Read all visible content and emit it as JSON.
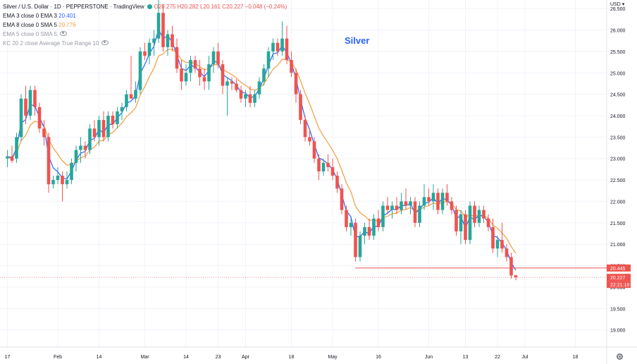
{
  "header": {
    "symbol": "Silver / U.S. Dollar · 1D · PEPPERSTONE · TradingView",
    "ohlc": "O20.275 H20.282 L20.161 C20.227 −0.048 (−0.24%)",
    "indicators": [
      {
        "label": "EMA 3 close 0 EMA 3",
        "value": "20.401",
        "color": "#2962ff"
      },
      {
        "label": "EMA 8 close 0 SMA 5",
        "value": "20.776",
        "color": "#f39c3c"
      },
      {
        "label": "EMA 5 close 0 SMA 5",
        "value": "",
        "color": "#9598a1"
      },
      {
        "label": "KC 20 2 close Average True Range 10",
        "value": "",
        "color": "#9598a1"
      }
    ]
  },
  "watermark": "Silver",
  "price_axis": {
    "currency": "USD",
    "ticks": [
      "26.500",
      "26.000",
      "25.500",
      "25.000",
      "24.500",
      "24.000",
      "23.500",
      "23.000",
      "22.500",
      "22.000",
      "21.500",
      "21.000",
      "20.500",
      "20.000",
      "19.500",
      "19.000"
    ],
    "tags": [
      {
        "text": "20.445",
        "value": 20.445,
        "bg": "#ef5350"
      },
      {
        "text": "20.227",
        "value": 20.227,
        "bg": "#ef5350"
      },
      {
        "text": "22:21:18",
        "value": 20.1,
        "bg": "#ef5350"
      }
    ]
  },
  "time_axis": {
    "ticks": [
      {
        "label": "17",
        "idx": 0
      },
      {
        "label": "Feb",
        "idx": 11
      },
      {
        "label": "14",
        "idx": 20
      },
      {
        "label": "Mar",
        "idx": 30
      },
      {
        "label": "14",
        "idx": 39
      },
      {
        "label": "23",
        "idx": 46
      },
      {
        "label": "Apr",
        "idx": 52
      },
      {
        "label": "18",
        "idx": 62
      },
      {
        "label": "May",
        "idx": 71
      },
      {
        "label": "16",
        "idx": 81
      },
      {
        "label": "Jun",
        "idx": 92
      },
      {
        "label": "13",
        "idx": 100
      },
      {
        "label": "22",
        "idx": 107
      },
      {
        "label": "Jul",
        "idx": 113
      },
      {
        "label": "18",
        "idx": 124
      }
    ]
  },
  "chart_data": {
    "type": "candlestick",
    "title": "Silver / U.S. Dollar · 1D · PEPPERSTONE",
    "ylim": [
      18.6,
      26.7
    ],
    "support_level": 20.445,
    "last_price": 20.227,
    "colors": {
      "up": "#26a69a",
      "down": "#ef5350",
      "ema3": "#2962ff",
      "ema8": "#f39c3c"
    },
    "candles": [
      {
        "o": 23.0,
        "h": 23.2,
        "l": 22.8,
        "c": 23.05
      },
      {
        "o": 23.05,
        "h": 23.3,
        "l": 22.9,
        "c": 22.95
      },
      {
        "o": 23.0,
        "h": 23.6,
        "l": 22.9,
        "c": 23.5
      },
      {
        "o": 23.5,
        "h": 24.5,
        "l": 23.4,
        "c": 24.4
      },
      {
        "o": 24.4,
        "h": 24.7,
        "l": 23.8,
        "c": 24.0
      },
      {
        "o": 24.0,
        "h": 24.7,
        "l": 23.9,
        "c": 24.6
      },
      {
        "o": 24.6,
        "h": 24.7,
        "l": 24.0,
        "c": 24.2
      },
      {
        "o": 24.2,
        "h": 24.3,
        "l": 23.6,
        "c": 23.7
      },
      {
        "o": 23.7,
        "h": 23.9,
        "l": 23.3,
        "c": 23.5
      },
      {
        "o": 23.5,
        "h": 23.6,
        "l": 22.2,
        "c": 22.4
      },
      {
        "o": 22.4,
        "h": 22.6,
        "l": 22.3,
        "c": 22.5
      },
      {
        "o": 22.5,
        "h": 22.8,
        "l": 22.4,
        "c": 22.6
      },
      {
        "o": 22.6,
        "h": 22.7,
        "l": 22.0,
        "c": 22.4
      },
      {
        "o": 22.4,
        "h": 22.7,
        "l": 22.3,
        "c": 22.5
      },
      {
        "o": 22.5,
        "h": 23.0,
        "l": 22.4,
        "c": 22.9
      },
      {
        "o": 22.9,
        "h": 23.3,
        "l": 22.7,
        "c": 23.2
      },
      {
        "o": 23.2,
        "h": 23.5,
        "l": 22.9,
        "c": 23.3
      },
      {
        "o": 23.3,
        "h": 23.4,
        "l": 23.0,
        "c": 23.2
      },
      {
        "o": 23.2,
        "h": 23.8,
        "l": 23.1,
        "c": 23.7
      },
      {
        "o": 23.7,
        "h": 23.9,
        "l": 23.4,
        "c": 23.5
      },
      {
        "o": 23.5,
        "h": 24.0,
        "l": 23.3,
        "c": 23.9
      },
      {
        "o": 23.9,
        "h": 24.1,
        "l": 23.4,
        "c": 23.5
      },
      {
        "o": 23.5,
        "h": 24.1,
        "l": 23.4,
        "c": 24.0
      },
      {
        "o": 24.0,
        "h": 24.1,
        "l": 23.7,
        "c": 23.8
      },
      {
        "o": 23.8,
        "h": 24.2,
        "l": 23.7,
        "c": 24.1
      },
      {
        "o": 24.1,
        "h": 24.3,
        "l": 23.9,
        "c": 24.2
      },
      {
        "o": 24.2,
        "h": 24.6,
        "l": 24.1,
        "c": 24.5
      },
      {
        "o": 24.5,
        "h": 25.4,
        "l": 24.4,
        "c": 24.4
      },
      {
        "o": 24.4,
        "h": 24.8,
        "l": 24.3,
        "c": 24.6
      },
      {
        "o": 24.6,
        "h": 25.6,
        "l": 24.5,
        "c": 25.5
      },
      {
        "o": 25.5,
        "h": 25.7,
        "l": 25.3,
        "c": 25.4
      },
      {
        "o": 25.4,
        "h": 25.8,
        "l": 25.2,
        "c": 25.7
      },
      {
        "o": 25.7,
        "h": 26.0,
        "l": 25.4,
        "c": 25.8
      },
      {
        "o": 25.8,
        "h": 26.7,
        "l": 25.7,
        "c": 26.4
      },
      {
        "o": 26.4,
        "h": 26.6,
        "l": 25.5,
        "c": 25.6
      },
      {
        "o": 25.6,
        "h": 26.0,
        "l": 25.4,
        "c": 25.9
      },
      {
        "o": 25.9,
        "h": 26.1,
        "l": 25.5,
        "c": 25.6
      },
      {
        "o": 25.6,
        "h": 25.8,
        "l": 25.0,
        "c": 25.1
      },
      {
        "o": 25.1,
        "h": 25.3,
        "l": 24.6,
        "c": 24.8
      },
      {
        "o": 24.8,
        "h": 25.2,
        "l": 24.7,
        "c": 25.0
      },
      {
        "o": 25.0,
        "h": 25.4,
        "l": 24.8,
        "c": 25.3
      },
      {
        "o": 25.3,
        "h": 25.4,
        "l": 25.0,
        "c": 25.1
      },
      {
        "o": 25.1,
        "h": 25.3,
        "l": 24.7,
        "c": 24.9
      },
      {
        "o": 24.9,
        "h": 25.1,
        "l": 24.6,
        "c": 24.8
      },
      {
        "o": 24.8,
        "h": 25.4,
        "l": 24.6,
        "c": 25.2
      },
      {
        "o": 25.2,
        "h": 25.6,
        "l": 25.0,
        "c": 25.5
      },
      {
        "o": 25.5,
        "h": 25.7,
        "l": 25.1,
        "c": 25.2
      },
      {
        "o": 25.2,
        "h": 25.3,
        "l": 24.5,
        "c": 24.7
      },
      {
        "o": 24.7,
        "h": 24.9,
        "l": 24.0,
        "c": 24.8
      },
      {
        "o": 24.8,
        "h": 24.9,
        "l": 24.6,
        "c": 24.75
      },
      {
        "o": 24.75,
        "h": 24.85,
        "l": 24.55,
        "c": 24.6
      },
      {
        "o": 24.6,
        "h": 24.7,
        "l": 24.3,
        "c": 24.4
      },
      {
        "o": 24.4,
        "h": 24.6,
        "l": 24.2,
        "c": 24.5
      },
      {
        "o": 24.5,
        "h": 24.7,
        "l": 24.2,
        "c": 24.3
      },
      {
        "o": 24.3,
        "h": 24.6,
        "l": 24.2,
        "c": 24.5
      },
      {
        "o": 24.5,
        "h": 24.9,
        "l": 24.4,
        "c": 24.8
      },
      {
        "o": 24.8,
        "h": 25.2,
        "l": 24.7,
        "c": 25.1
      },
      {
        "o": 25.1,
        "h": 25.6,
        "l": 24.9,
        "c": 25.5
      },
      {
        "o": 25.5,
        "h": 25.8,
        "l": 25.3,
        "c": 25.7
      },
      {
        "o": 25.7,
        "h": 25.8,
        "l": 25.4,
        "c": 25.5
      },
      {
        "o": 25.5,
        "h": 26.2,
        "l": 25.4,
        "c": 25.8
      },
      {
        "o": 25.8,
        "h": 26.1,
        "l": 25.2,
        "c": 25.3
      },
      {
        "o": 25.3,
        "h": 25.5,
        "l": 24.9,
        "c": 25.0
      },
      {
        "o": 25.0,
        "h": 25.1,
        "l": 24.3,
        "c": 24.5
      },
      {
        "o": 24.5,
        "h": 24.6,
        "l": 23.8,
        "c": 23.9
      },
      {
        "o": 23.9,
        "h": 24.0,
        "l": 23.4,
        "c": 23.5
      },
      {
        "o": 23.5,
        "h": 23.7,
        "l": 23.3,
        "c": 23.4
      },
      {
        "o": 23.4,
        "h": 23.5,
        "l": 22.9,
        "c": 23.0
      },
      {
        "o": 23.0,
        "h": 23.1,
        "l": 22.5,
        "c": 22.7
      },
      {
        "o": 22.7,
        "h": 23.0,
        "l": 22.6,
        "c": 22.9
      },
      {
        "o": 22.9,
        "h": 23.1,
        "l": 22.7,
        "c": 22.8
      },
      {
        "o": 22.8,
        "h": 23.0,
        "l": 22.5,
        "c": 22.6
      },
      {
        "o": 22.6,
        "h": 22.7,
        "l": 22.2,
        "c": 22.3
      },
      {
        "o": 22.3,
        "h": 22.4,
        "l": 21.7,
        "c": 21.8
      },
      {
        "o": 21.8,
        "h": 21.9,
        "l": 21.3,
        "c": 21.4
      },
      {
        "o": 21.4,
        "h": 21.6,
        "l": 21.2,
        "c": 21.5
      },
      {
        "o": 21.5,
        "h": 21.6,
        "l": 20.6,
        "c": 20.7
      },
      {
        "o": 20.7,
        "h": 21.3,
        "l": 20.6,
        "c": 21.2
      },
      {
        "o": 21.2,
        "h": 21.5,
        "l": 21.0,
        "c": 21.4
      },
      {
        "o": 21.4,
        "h": 21.6,
        "l": 21.1,
        "c": 21.2
      },
      {
        "o": 21.2,
        "h": 21.7,
        "l": 21.1,
        "c": 21.6
      },
      {
        "o": 21.6,
        "h": 21.8,
        "l": 21.3,
        "c": 21.4
      },
      {
        "o": 21.4,
        "h": 22.0,
        "l": 21.3,
        "c": 21.9
      },
      {
        "o": 21.9,
        "h": 22.1,
        "l": 21.7,
        "c": 21.8
      },
      {
        "o": 21.8,
        "h": 22.0,
        "l": 21.6,
        "c": 21.9
      },
      {
        "o": 21.9,
        "h": 22.1,
        "l": 21.7,
        "c": 21.8
      },
      {
        "o": 21.8,
        "h": 22.2,
        "l": 21.7,
        "c": 22.0
      },
      {
        "o": 22.0,
        "h": 22.3,
        "l": 21.8,
        "c": 21.9
      },
      {
        "o": 21.9,
        "h": 22.1,
        "l": 21.7,
        "c": 22.0
      },
      {
        "o": 22.0,
        "h": 22.1,
        "l": 21.4,
        "c": 21.5
      },
      {
        "o": 21.5,
        "h": 22.0,
        "l": 21.4,
        "c": 21.9
      },
      {
        "o": 21.9,
        "h": 22.4,
        "l": 21.8,
        "c": 22.1
      },
      {
        "o": 22.1,
        "h": 22.3,
        "l": 21.9,
        "c": 22.0
      },
      {
        "o": 22.0,
        "h": 22.4,
        "l": 21.8,
        "c": 22.2
      },
      {
        "o": 22.2,
        "h": 22.3,
        "l": 21.7,
        "c": 21.8
      },
      {
        "o": 21.8,
        "h": 22.3,
        "l": 21.7,
        "c": 22.2
      },
      {
        "o": 22.2,
        "h": 22.4,
        "l": 21.9,
        "c": 22.0
      },
      {
        "o": 22.0,
        "h": 22.1,
        "l": 21.7,
        "c": 21.8
      },
      {
        "o": 21.8,
        "h": 21.9,
        "l": 21.2,
        "c": 21.3
      },
      {
        "o": 21.3,
        "h": 21.8,
        "l": 21.0,
        "c": 21.7
      },
      {
        "o": 21.7,
        "h": 21.8,
        "l": 21.0,
        "c": 21.1
      },
      {
        "o": 21.1,
        "h": 22.0,
        "l": 21.0,
        "c": 21.9
      },
      {
        "o": 21.9,
        "h": 22.0,
        "l": 21.4,
        "c": 21.5
      },
      {
        "o": 21.5,
        "h": 21.9,
        "l": 21.4,
        "c": 21.8
      },
      {
        "o": 21.8,
        "h": 21.9,
        "l": 21.5,
        "c": 21.6
      },
      {
        "o": 21.6,
        "h": 21.7,
        "l": 21.3,
        "c": 21.4
      },
      {
        "o": 21.4,
        "h": 21.6,
        "l": 20.8,
        "c": 20.9
      },
      {
        "o": 20.9,
        "h": 21.2,
        "l": 20.7,
        "c": 21.1
      },
      {
        "o": 21.1,
        "h": 21.5,
        "l": 20.8,
        "c": 20.9
      },
      {
        "o": 20.9,
        "h": 21.0,
        "l": 20.6,
        "c": 20.7
      },
      {
        "o": 20.7,
        "h": 20.8,
        "l": 20.2,
        "c": 20.27
      },
      {
        "o": 20.275,
        "h": 20.282,
        "l": 20.161,
        "c": 20.227
      }
    ]
  }
}
